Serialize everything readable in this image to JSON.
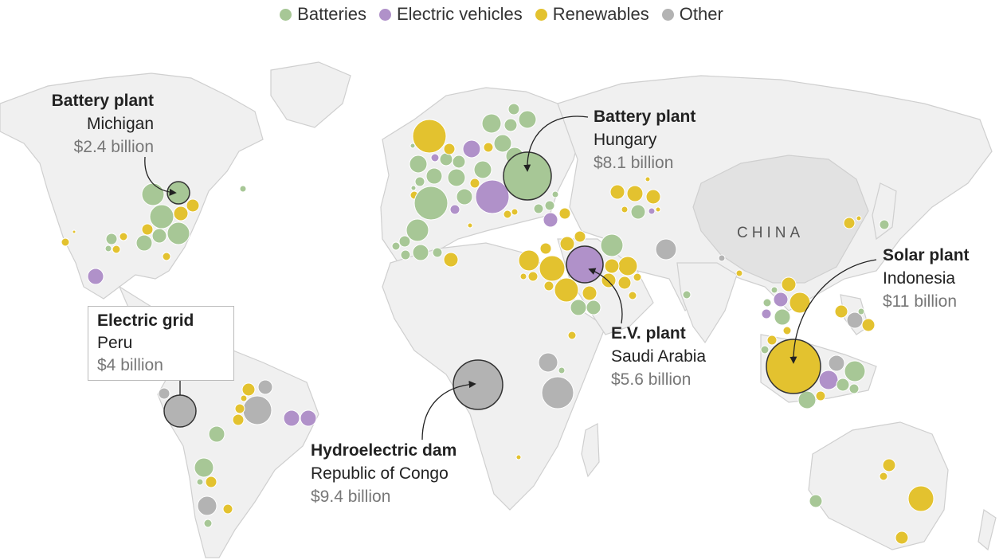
{
  "legend": [
    {
      "label": "Batteries",
      "color": "#a7c796"
    },
    {
      "label": "Electric vehicles",
      "color": "#b091c9"
    },
    {
      "label": "Renewables",
      "color": "#e3c22f"
    },
    {
      "label": "Other",
      "color": "#b3b3b3"
    }
  ],
  "country_label": "CHINA",
  "callouts": {
    "michigan": {
      "title": "Battery plant",
      "location": "Michigan",
      "amount": "$2.4 billion",
      "category": "Batteries"
    },
    "hungary": {
      "title": "Battery plant",
      "location": "Hungary",
      "amount": "$8.1 billion",
      "category": "Batteries"
    },
    "peru": {
      "title": "Electric grid",
      "location": "Peru",
      "amount": "$4 billion",
      "category": "Other"
    },
    "saudi": {
      "title": "E.V. plant",
      "location": "Saudi Arabia",
      "amount": "$5.6 billion",
      "category": "Electric vehicles"
    },
    "congo": {
      "title": "Hydroelectric dam",
      "location": "Republic of Congo",
      "amount": "$9.4 billion",
      "category": "Other"
    },
    "indonesia": {
      "title": "Solar plant",
      "location": "Indonesia",
      "amount": "$11 billion",
      "category": "Renewables"
    }
  }
}
